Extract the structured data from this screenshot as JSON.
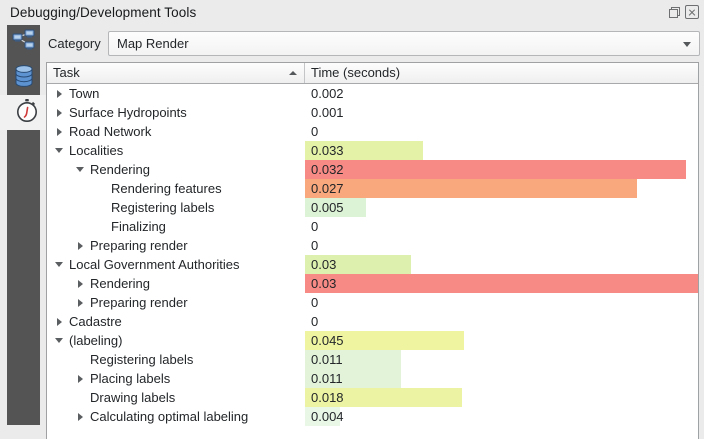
{
  "window": {
    "title": "Debugging/Development Tools"
  },
  "titlebar_icons": [
    "float-icon",
    "close-icon"
  ],
  "sidebar": {
    "tabs": [
      {
        "name": "network-logger",
        "icon": "network-icon",
        "active": false
      },
      {
        "name": "query-logger",
        "icon": "database-icon",
        "active": false
      },
      {
        "name": "profiler",
        "icon": "stopwatch-icon",
        "active": true
      }
    ]
  },
  "category": {
    "label": "Category",
    "selected": "Map Render"
  },
  "table": {
    "columns": [
      {
        "label": "Task",
        "sort": "asc"
      },
      {
        "label": "Time (seconds)",
        "sort": null
      }
    ],
    "rows": [
      {
        "task": "Town",
        "time": "0.002",
        "level": 1,
        "arrow": "collapsed",
        "bar_pct": 0,
        "bar_color": null
      },
      {
        "task": "Surface Hydropoints",
        "time": "0.001",
        "level": 1,
        "arrow": "collapsed",
        "bar_pct": 0,
        "bar_color": null
      },
      {
        "task": "Road Network",
        "time": "0",
        "level": 1,
        "arrow": "collapsed",
        "bar_pct": 0,
        "bar_color": null
      },
      {
        "task": "Localities",
        "time": "0.033",
        "level": 1,
        "arrow": "expanded",
        "bar_pct": 30,
        "bar_color": "#e4f2a8"
      },
      {
        "task": "Rendering",
        "time": "0.032",
        "level": 2,
        "arrow": "expanded",
        "bar_pct": 97,
        "bar_color": "#f88a85"
      },
      {
        "task": "Rendering features",
        "time": "0.027",
        "level": 3,
        "arrow": "none",
        "bar_pct": 84.5,
        "bar_color": "#f9a87d"
      },
      {
        "task": "Registering labels",
        "time": "0.005",
        "level": 3,
        "arrow": "none",
        "bar_pct": 15.6,
        "bar_color": "#ddf3d5"
      },
      {
        "task": "Finalizing",
        "time": "0",
        "level": 3,
        "arrow": "none",
        "bar_pct": 0,
        "bar_color": null
      },
      {
        "task": "Preparing render",
        "time": "0",
        "level": 2,
        "arrow": "collapsed",
        "bar_pct": 0,
        "bar_color": null
      },
      {
        "task": "Local Government Authorities",
        "time": "0.03",
        "level": 1,
        "arrow": "expanded",
        "bar_pct": 27,
        "bar_color": "#def0ae"
      },
      {
        "task": "Rendering",
        "time": "0.03",
        "level": 2,
        "arrow": "collapsed",
        "bar_pct": 100,
        "bar_color": "#f88a85"
      },
      {
        "task": "Preparing render",
        "time": "0",
        "level": 2,
        "arrow": "collapsed",
        "bar_pct": 0,
        "bar_color": null
      },
      {
        "task": "Cadastre",
        "time": "0",
        "level": 1,
        "arrow": "collapsed",
        "bar_pct": 0,
        "bar_color": null
      },
      {
        "task": "(labeling)",
        "time": "0.045",
        "level": 1,
        "arrow": "expanded",
        "bar_pct": 40.5,
        "bar_color": "#eff4a1"
      },
      {
        "task": "Registering labels",
        "time": "0.011",
        "level": 2,
        "arrow": "none",
        "bar_pct": 24.4,
        "bar_color": "#e2f3da"
      },
      {
        "task": "Placing labels",
        "time": "0.011",
        "level": 2,
        "arrow": "collapsed",
        "bar_pct": 24.4,
        "bar_color": "#e2f3da"
      },
      {
        "task": "Drawing labels",
        "time": "0.018",
        "level": 2,
        "arrow": "none",
        "bar_pct": 40,
        "bar_color": "#ecf4a3"
      },
      {
        "task": "Calculating optimal labeling",
        "time": "0.004",
        "level": 2,
        "arrow": "collapsed",
        "bar_pct": 8.9,
        "bar_color": "#e9f7e7"
      }
    ]
  },
  "colors": {
    "panel_bg": "#ebebeb",
    "sidebar_bg": "#545454",
    "tree_bg": "#ffffff",
    "heat_low": "#e9f7e7",
    "heat_mid": "#eff4a1",
    "heat_high": "#f88a85"
  }
}
